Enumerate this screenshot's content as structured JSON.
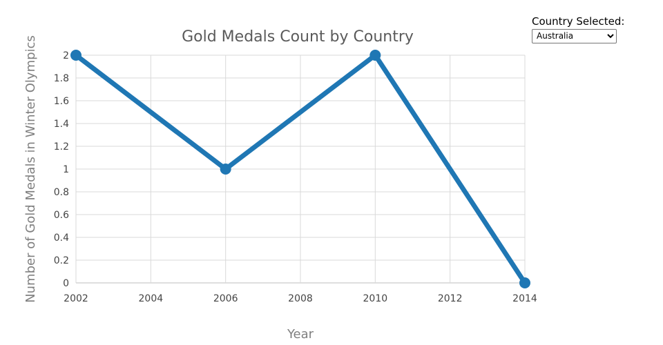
{
  "selector": {
    "label": "Country Selected:",
    "options": [
      "Australia"
    ],
    "selected": "Australia"
  },
  "chart_data": {
    "type": "line",
    "title": "Gold Medals Count by Country",
    "xlabel": "Year",
    "ylabel": "Number of Gold Medals in Winter Olympics",
    "x": [
      2002,
      2006,
      2010,
      2014
    ],
    "series": [
      {
        "values": [
          2,
          1,
          2,
          0
        ],
        "color": "#1f77b4"
      }
    ],
    "xlim": [
      2002,
      2014
    ],
    "ylim": [
      0,
      2
    ],
    "xticks": [
      2002,
      2004,
      2006,
      2008,
      2010,
      2012,
      2014
    ],
    "yticks": [
      0,
      0.2,
      0.4,
      0.6,
      0.8,
      1,
      1.2,
      1.4,
      1.6,
      1.8,
      2
    ],
    "grid": true,
    "markers": true
  }
}
